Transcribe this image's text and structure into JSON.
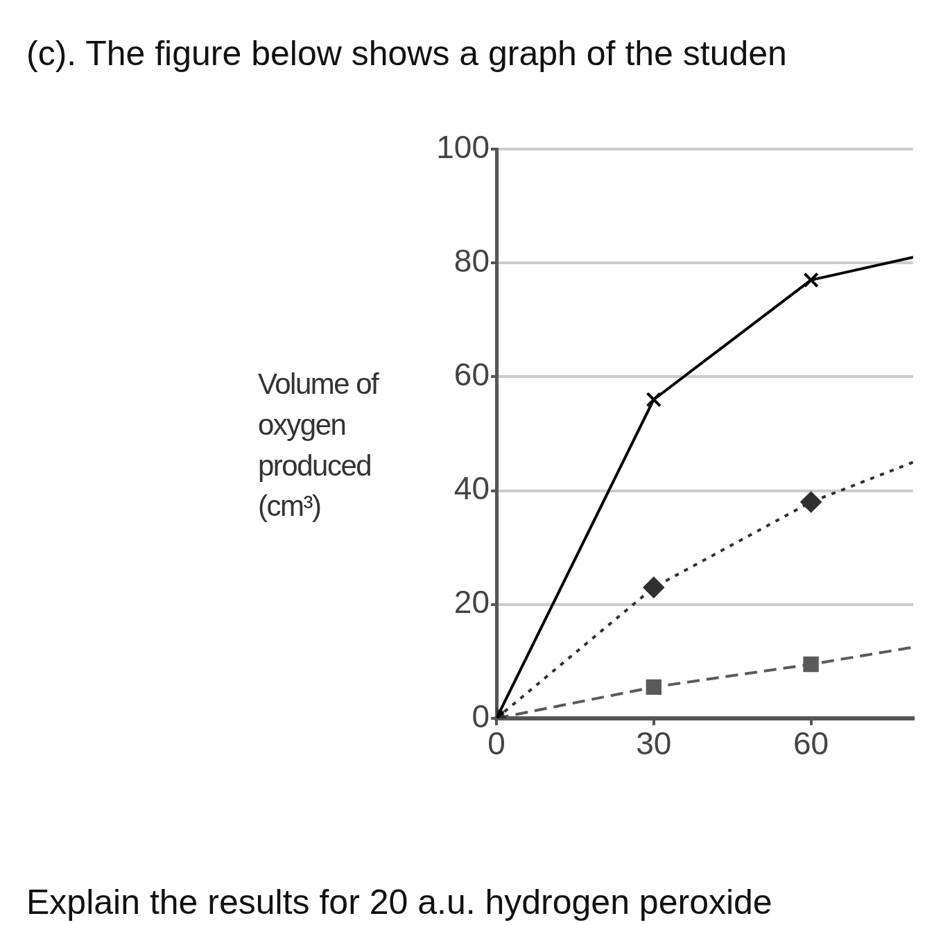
{
  "chart_data": {
    "type": "line",
    "title": "(c). The figure below shows a graph of the studen",
    "ylabel": "Volume of oxygen produced (cm³)",
    "annotations": [
      "Explain the results for 20 a.u. hydrogen peroxide"
    ],
    "x": [
      0,
      30,
      60,
      79.5
    ],
    "xlim": [
      0,
      79.5
    ],
    "xticks": [
      0,
      30,
      60
    ],
    "ylim": [
      0,
      100
    ],
    "yticks": [
      0,
      20,
      40,
      60,
      80,
      100
    ],
    "grid": "y",
    "legend": false,
    "series": [
      {
        "color": "#000000",
        "values": [
          0,
          56,
          77,
          81
        ],
        "marker": "cross",
        "line_style": "solid"
      },
      {
        "color": "#303030",
        "values": [
          0,
          23,
          38,
          45
        ],
        "marker": "diamond",
        "line_style": "dotted"
      },
      {
        "color": "#5a5a5a",
        "values": [
          0,
          5.5,
          9.5,
          12.5
        ],
        "marker": "square",
        "line_style": "dashed"
      }
    ]
  }
}
